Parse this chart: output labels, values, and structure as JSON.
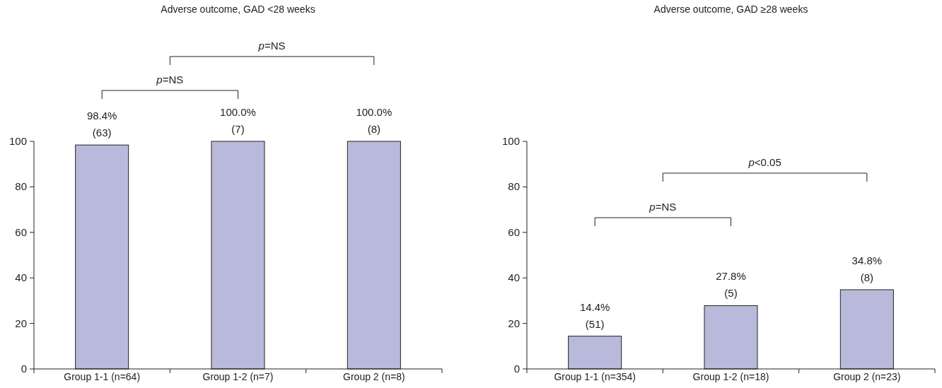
{
  "chart_data": [
    {
      "type": "bar",
      "title": "Adverse outcome, GAD <28 weeks",
      "categories": [
        "Group 1-1 (n=64)",
        "Group 1-2 (n=7)",
        "Group 2 (n=8)"
      ],
      "values": [
        98.4,
        100.0,
        100.0
      ],
      "color": "#b9b9db",
      "ylim": [
        0,
        100
      ],
      "yticks": [
        0,
        20,
        40,
        60,
        80,
        100
      ],
      "value_labels": [
        "98.4%\n(63)",
        "100.0%\n(7)",
        "100.0%\n(8)"
      ],
      "annotations": [
        "p=NS",
        "p=NS"
      ]
    },
    {
      "type": "bar",
      "title": "Adverse outcome, GAD ≥28 weeks",
      "categories": [
        "Group 1-1 (n=354)",
        "Group 1-2 (n=18)",
        "Group 2 (n=23)"
      ],
      "values": [
        14.4,
        27.8,
        34.8
      ],
      "color": "#b9b9db",
      "ylim": [
        0,
        100
      ],
      "yticks": [
        0,
        20,
        40,
        60,
        80,
        100
      ],
      "value_labels": [
        "14.4%\n(51)",
        "27.8%\n(5)",
        "34.8%\n(8)"
      ],
      "annotations": [
        "p=NS",
        "p<0.05"
      ]
    }
  ]
}
